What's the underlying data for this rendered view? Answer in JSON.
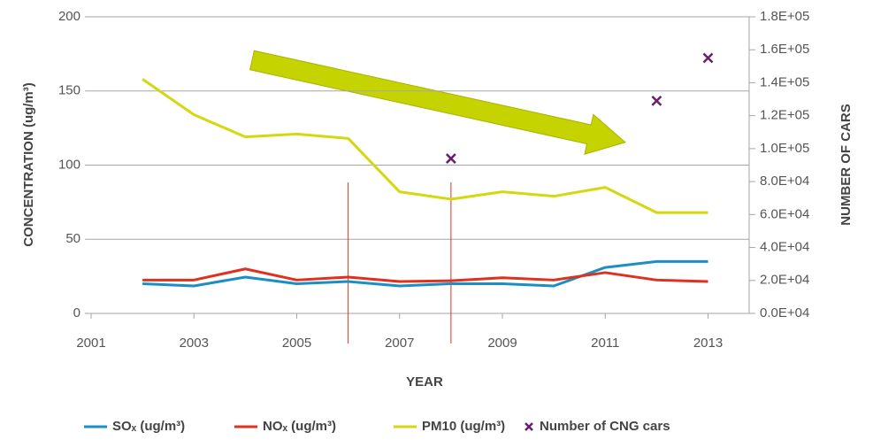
{
  "chart_data": {
    "type": "line",
    "x_label": "YEAR",
    "y_label": "CONCENTRATION (ug/m³)",
    "y2_label": "NUMBER OF CARS",
    "x": [
      2002,
      2003,
      2004,
      2005,
      2006,
      2007,
      2008,
      2009,
      2010,
      2011,
      2012,
      2013
    ],
    "series": [
      {
        "name": "SOₓ (ug/m³)",
        "color": "#1b8fc4",
        "type": "line",
        "values": [
          20,
          18.5,
          24.5,
          20,
          21.5,
          18.5,
          20,
          20,
          18.5,
          31,
          35,
          35
        ]
      },
      {
        "name": "NOₓ (ug/m³)",
        "color": "#e0301e",
        "type": "line",
        "values": [
          22.5,
          22.5,
          30,
          22.5,
          24.5,
          21.5,
          22,
          24,
          22.5,
          27.5,
          22.5,
          21.5
        ]
      },
      {
        "name": "PM10 (ug/m³)",
        "color": "#d4d80f",
        "type": "line",
        "values": [
          158,
          134,
          119,
          121,
          118,
          82,
          77,
          82,
          79,
          85,
          68,
          68
        ]
      },
      {
        "name": "Number of CNG cars",
        "color": "#6b1e6e",
        "type": "scatter",
        "axis": "y2",
        "values": [
          null,
          null,
          null,
          null,
          null,
          null,
          94000,
          null,
          null,
          null,
          129000,
          155000
        ]
      }
    ],
    "xlim": [
      2001,
      2013.8
    ],
    "xticks": [
      2001,
      2003,
      2005,
      2007,
      2009,
      2011,
      2013
    ],
    "ylim": [
      0,
      200
    ],
    "yticks": [
      0,
      50,
      100,
      150,
      200
    ],
    "y2lim": [
      0,
      180000
    ],
    "y2ticks": [
      {
        "value": 0,
        "label": "0.0E+04"
      },
      {
        "value": 20000,
        "label": "2.0E+04"
      },
      {
        "value": 40000,
        "label": "4.0E+04"
      },
      {
        "value": 60000,
        "label": "6.0E+04"
      },
      {
        "value": 80000,
        "label": "8.0E+04"
      },
      {
        "value": 100000,
        "label": "1.0E+05"
      },
      {
        "value": 120000,
        "label": "1.2E+05"
      },
      {
        "value": 140000,
        "label": "1.4E+05"
      },
      {
        "value": 160000,
        "label": "1.6E+05"
      },
      {
        "value": 180000,
        "label": "1.8E+05"
      }
    ],
    "vlines": [
      2006,
      2008
    ],
    "grid": true,
    "legend": "bottom"
  }
}
